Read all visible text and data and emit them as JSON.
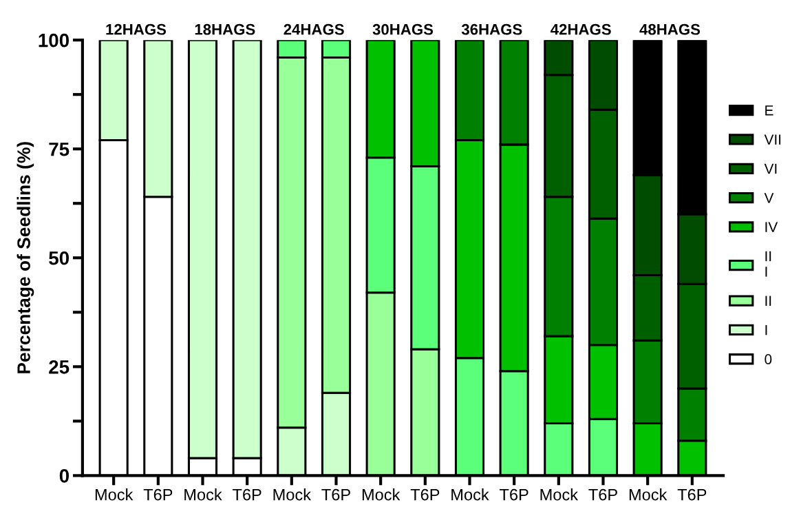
{
  "chart_data": {
    "type": "bar",
    "stacked": true,
    "ylabel": "Percentage of Seedlins (%)",
    "categories": [
      "Mock",
      "T6P",
      "Mock",
      "T6P",
      "Mock",
      "T6P",
      "Mock",
      "T6P",
      "Mock",
      "T6P",
      "Mock",
      "T6P",
      "Mock",
      "T6P"
    ],
    "annotations": [
      "12HAGS",
      "18HAGS",
      "24HAGS",
      "30HAGS",
      "36HAGS",
      "42HAGS",
      "48HAGS"
    ],
    "ylim": [
      0,
      100
    ],
    "yticks": [
      0,
      {
        "value": 12.5,
        "label": null
      },
      25,
      {
        "value": 37.5,
        "label": null
      },
      50,
      {
        "value": 62.5,
        "label": null
      },
      75,
      {
        "value": 87.5,
        "label": null
      },
      100
    ],
    "legend": "right",
    "grid": false,
    "series": [
      {
        "name": "0",
        "color": "#ffffff",
        "values": [
          77,
          64,
          4,
          4,
          null,
          null,
          null,
          null,
          null,
          null,
          null,
          null,
          null,
          null
        ]
      },
      {
        "name": "I",
        "color": "#ccffcc",
        "values": [
          23,
          36,
          96,
          96,
          11,
          19,
          null,
          null,
          null,
          null,
          null,
          null,
          null,
          null
        ]
      },
      {
        "name": "II",
        "color": "#99ff99",
        "values": [
          null,
          null,
          null,
          null,
          85,
          77,
          42,
          29,
          null,
          null,
          null,
          null,
          null,
          null
        ]
      },
      {
        "name": "II\nI",
        "color": "#5cff7a",
        "values": [
          null,
          null,
          null,
          null,
          4,
          4,
          31,
          42,
          27,
          24,
          12,
          13,
          null,
          null
        ]
      },
      {
        "name": "IV",
        "color": "#00c000",
        "values": [
          null,
          null,
          null,
          null,
          null,
          null,
          27,
          29,
          50,
          52,
          20,
          17,
          12,
          8
        ]
      },
      {
        "name": "V",
        "color": "#008000",
        "values": [
          null,
          null,
          null,
          null,
          null,
          null,
          null,
          null,
          23,
          24,
          32,
          29,
          19,
          12
        ]
      },
      {
        "name": "VI",
        "color": "#006000",
        "values": [
          null,
          null,
          null,
          null,
          null,
          null,
          null,
          null,
          null,
          null,
          28,
          25,
          15,
          24
        ]
      },
      {
        "name": "VII",
        "color": "#004c00",
        "values": [
          null,
          null,
          null,
          null,
          null,
          null,
          null,
          null,
          null,
          null,
          8,
          16,
          23,
          16
        ]
      },
      {
        "name": "E",
        "color": "#000000",
        "values": [
          null,
          null,
          null,
          null,
          null,
          null,
          null,
          null,
          null,
          null,
          null,
          null,
          31,
          40
        ]
      }
    ]
  }
}
